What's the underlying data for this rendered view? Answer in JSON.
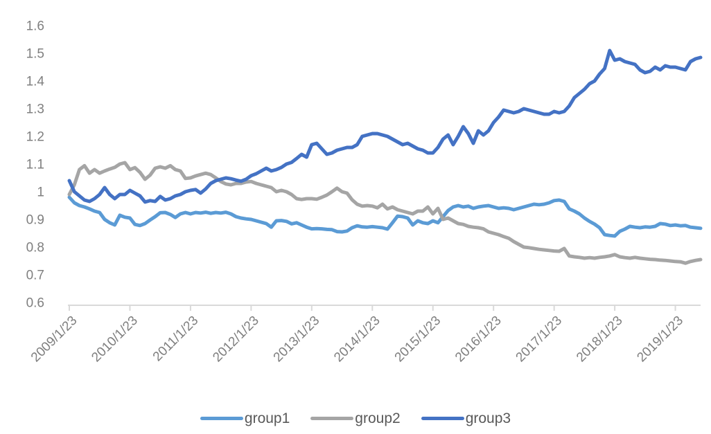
{
  "chart_data": {
    "type": "line",
    "title": "",
    "legend_position": "bottom",
    "grid": false,
    "background": "#FFFFFF",
    "x_axis": {
      "tick_labels": [
        "2009/1/23",
        "2010/1/23",
        "2011/1/23",
        "2012/1/23",
        "2013/1/23",
        "2014/1/23",
        "2015/1/23",
        "2016/1/23",
        "2017/1/23",
        "2018/1/23",
        "2019/1/23"
      ],
      "points_per_tick": 12,
      "n_points": 126
    },
    "y_axis": {
      "tick_labels": [
        "1.6",
        "1.5",
        "1.4",
        "1.3",
        "1.2",
        "1.1",
        "1",
        "0.9",
        "0.8",
        "0.7",
        "0.6"
      ],
      "min": 0.6,
      "max": 1.6,
      "step": 0.1
    },
    "series": [
      {
        "name": "group1",
        "color": "#5B9BD5",
        "values": [
          0.98,
          0.96,
          0.95,
          0.945,
          0.938,
          0.93,
          0.925,
          0.9,
          0.888,
          0.88,
          0.915,
          0.908,
          0.905,
          0.882,
          0.878,
          0.885,
          0.898,
          0.91,
          0.924,
          0.925,
          0.918,
          0.907,
          0.92,
          0.925,
          0.92,
          0.925,
          0.923,
          0.926,
          0.922,
          0.925,
          0.923,
          0.926,
          0.92,
          0.91,
          0.905,
          0.902,
          0.9,
          0.895,
          0.89,
          0.885,
          0.872,
          0.895,
          0.896,
          0.893,
          0.884,
          0.888,
          0.88,
          0.872,
          0.866,
          0.867,
          0.866,
          0.864,
          0.863,
          0.856,
          0.855,
          0.858,
          0.87,
          0.877,
          0.873,
          0.872,
          0.874,
          0.872,
          0.87,
          0.865,
          0.888,
          0.912,
          0.91,
          0.905,
          0.88,
          0.895,
          0.888,
          0.885,
          0.895,
          0.888,
          0.91,
          0.932,
          0.945,
          0.95,
          0.945,
          0.948,
          0.94,
          0.945,
          0.948,
          0.95,
          0.945,
          0.94,
          0.942,
          0.94,
          0.935,
          0.94,
          0.945,
          0.95,
          0.955,
          0.953,
          0.955,
          0.96,
          0.968,
          0.97,
          0.965,
          0.938,
          0.93,
          0.92,
          0.905,
          0.893,
          0.883,
          0.87,
          0.845,
          0.842,
          0.84,
          0.857,
          0.865,
          0.875,
          0.872,
          0.87,
          0.873,
          0.872,
          0.875,
          0.885,
          0.883,
          0.878,
          0.88,
          0.877,
          0.878,
          0.872,
          0.87,
          0.868
        ]
      },
      {
        "name": "group2",
        "color": "#A5A5A5",
        "values": [
          0.99,
          1.025,
          1.08,
          1.094,
          1.067,
          1.08,
          1.067,
          1.075,
          1.082,
          1.088,
          1.1,
          1.105,
          1.08,
          1.087,
          1.07,
          1.045,
          1.06,
          1.085,
          1.09,
          1.085,
          1.094,
          1.08,
          1.075,
          1.048,
          1.05,
          1.057,
          1.062,
          1.067,
          1.062,
          1.05,
          1.037,
          1.028,
          1.025,
          1.03,
          1.03,
          1.035,
          1.037,
          1.03,
          1.025,
          1.02,
          1.015,
          1.0,
          1.005,
          1.0,
          0.99,
          0.975,
          0.972,
          0.975,
          0.975,
          0.973,
          0.98,
          0.988,
          1.0,
          1.013,
          1.0,
          0.995,
          0.971,
          0.955,
          0.948,
          0.95,
          0.948,
          0.942,
          0.955,
          0.938,
          0.945,
          0.935,
          0.93,
          0.925,
          0.92,
          0.93,
          0.93,
          0.945,
          0.92,
          0.94,
          0.9,
          0.905,
          0.895,
          0.885,
          0.882,
          0.875,
          0.872,
          0.87,
          0.866,
          0.855,
          0.85,
          0.845,
          0.838,
          0.832,
          0.82,
          0.81,
          0.8,
          0.798,
          0.795,
          0.792,
          0.79,
          0.788,
          0.786,
          0.785,
          0.795,
          0.768,
          0.765,
          0.763,
          0.76,
          0.762,
          0.76,
          0.763,
          0.765,
          0.768,
          0.773,
          0.765,
          0.762,
          0.76,
          0.763,
          0.76,
          0.758,
          0.756,
          0.755,
          0.753,
          0.752,
          0.75,
          0.748,
          0.747,
          0.742,
          0.748,
          0.752,
          0.755
        ]
      },
      {
        "name": "group3",
        "color": "#4472C4",
        "values": [
          1.04,
          1.0,
          0.985,
          0.97,
          0.965,
          0.975,
          0.99,
          1.015,
          0.99,
          0.975,
          0.99,
          0.99,
          1.005,
          0.995,
          0.985,
          0.963,
          0.968,
          0.965,
          0.983,
          0.97,
          0.975,
          0.985,
          0.99,
          1.0,
          1.005,
          1.008,
          0.995,
          1.01,
          1.03,
          1.04,
          1.045,
          1.05,
          1.047,
          1.042,
          1.038,
          1.045,
          1.058,
          1.065,
          1.075,
          1.085,
          1.075,
          1.08,
          1.088,
          1.1,
          1.106,
          1.12,
          1.135,
          1.125,
          1.17,
          1.175,
          1.155,
          1.135,
          1.14,
          1.15,
          1.155,
          1.16,
          1.16,
          1.17,
          1.2,
          1.205,
          1.21,
          1.21,
          1.205,
          1.2,
          1.19,
          1.18,
          1.17,
          1.175,
          1.165,
          1.155,
          1.15,
          1.14,
          1.14,
          1.16,
          1.19,
          1.205,
          1.17,
          1.2,
          1.235,
          1.21,
          1.175,
          1.22,
          1.205,
          1.22,
          1.25,
          1.27,
          1.295,
          1.29,
          1.285,
          1.29,
          1.3,
          1.295,
          1.29,
          1.285,
          1.28,
          1.28,
          1.29,
          1.285,
          1.29,
          1.31,
          1.34,
          1.355,
          1.37,
          1.39,
          1.4,
          1.425,
          1.445,
          1.51,
          1.475,
          1.48,
          1.47,
          1.465,
          1.46,
          1.44,
          1.43,
          1.435,
          1.45,
          1.44,
          1.455,
          1.45,
          1.45,
          1.445,
          1.44,
          1.47,
          1.48,
          1.485
        ]
      }
    ]
  },
  "style": {
    "axis_color": "#D9D9D9",
    "tick_label_color": "#7F7F7F",
    "legend_text_color": "#595959",
    "line_width": 5
  }
}
